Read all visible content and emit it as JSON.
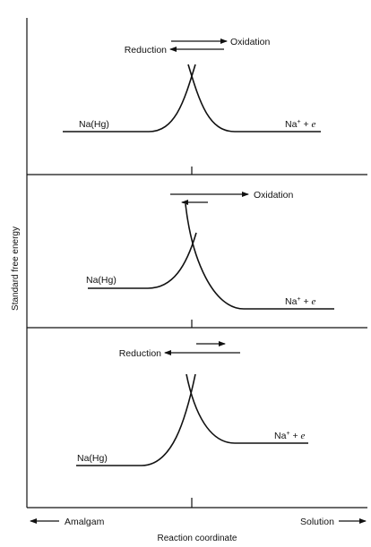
{
  "axes": {
    "y_label": "Standard free energy",
    "x_label": "Reaction coordinate",
    "left_end": "Amalgam",
    "right_end": "Solution"
  },
  "panels": [
    {
      "left_state": "Na(Hg)",
      "right_state_base": "Na",
      "right_state_sup": "+",
      "right_state_rest": " + ",
      "right_state_e": "e",
      "arrow_right_label": "Oxidation",
      "arrow_left_label": "Reduction"
    },
    {
      "left_state": "Na(Hg)",
      "right_state_base": "Na",
      "right_state_sup": "+",
      "right_state_rest": " + ",
      "right_state_e": "e",
      "arrow_right_label": "Oxidation"
    },
    {
      "left_state": "Na(Hg)",
      "right_state_base": "Na",
      "right_state_sup": "+",
      "right_state_rest": " + ",
      "right_state_e": "e",
      "arrow_left_label": "Reduction"
    }
  ],
  "colors": {
    "ink": "#111111",
    "background": "#ffffff"
  }
}
